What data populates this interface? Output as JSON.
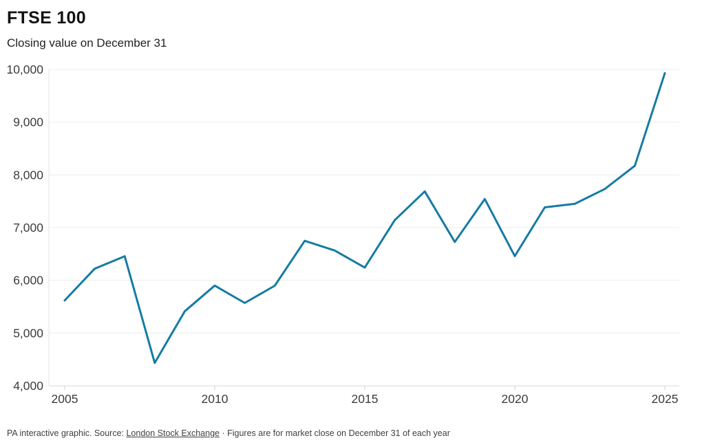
{
  "header": {
    "title": "FTSE 100",
    "subtitle": "Closing value on December 31"
  },
  "footer": {
    "prefix": "PA interactive graphic. Source: ",
    "source_label": "London Stock Exchange",
    "suffix": " · Figures are for market close on December 31 of each year"
  },
  "chart_data": {
    "type": "line",
    "title": "FTSE 100",
    "subtitle": "Closing value on December 31",
    "xlabel": "",
    "ylabel": "",
    "x": [
      2005,
      2006,
      2007,
      2008,
      2009,
      2010,
      2011,
      2012,
      2013,
      2014,
      2015,
      2016,
      2017,
      2018,
      2019,
      2020,
      2021,
      2022,
      2023,
      2024,
      2025
    ],
    "series": [
      {
        "name": "FTSE 100 closing value on December 31",
        "values": [
          5618.8,
          6220.8,
          6456.9,
          4434.2,
          5412.9,
          5899.9,
          5572.3,
          5897.8,
          6749.1,
          6566.1,
          6242.3,
          7142.8,
          7687.8,
          6728.1,
          7542.4,
          6460.5,
          7384.5,
          7451.7,
          7733.2,
          8173.0,
          9930
        ]
      }
    ],
    "ylim": [
      4000,
      10000
    ],
    "y_ticks": [
      4000,
      5000,
      6000,
      7000,
      8000,
      9000,
      10000
    ],
    "x_ticks": [
      2005,
      2010,
      2015,
      2020,
      2025
    ],
    "grid": "horizontal",
    "legend": "none",
    "line_color": "#147ba3"
  }
}
